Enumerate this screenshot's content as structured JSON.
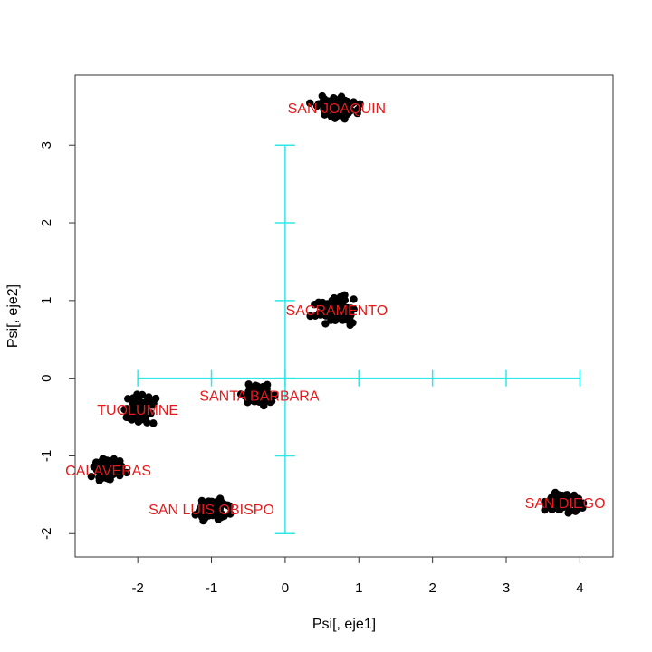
{
  "chart_data": {
    "type": "scatter",
    "title": "",
    "xlabel": "Psi[, eje1]",
    "ylabel": "Psi[, eje2]",
    "xlim": [
      -2.85,
      4.45
    ],
    "ylim": [
      -2.3,
      3.9
    ],
    "x_ticks": [
      -2,
      -1,
      0,
      1,
      2,
      3,
      4
    ],
    "y_ticks": [
      -2,
      -1,
      0,
      1,
      2,
      3
    ],
    "grid": false,
    "legend": "none",
    "point_color": "#000000",
    "label_color": "#e41a1c",
    "axes_cross_color": "#2ee8e8",
    "axes_cross": {
      "x_range": [
        -2,
        4
      ],
      "y_range": [
        -2,
        3
      ]
    },
    "clusters": [
      {
        "label": "SAN JOAQUIN",
        "center": [
          0.7,
          3.48
        ],
        "spread": [
          0.25,
          0.12
        ]
      },
      {
        "label": "SACRAMENTO",
        "center": [
          0.7,
          0.88
        ],
        "spread": [
          0.25,
          0.14
        ]
      },
      {
        "label": "SANTA BARBARA",
        "center": [
          -0.35,
          -0.22
        ],
        "spread": [
          0.18,
          0.1
        ]
      },
      {
        "label": "TUOLUMNE",
        "center": [
          -2.0,
          -0.4
        ],
        "spread": [
          0.18,
          0.16
        ]
      },
      {
        "label": "CALAVERAS",
        "center": [
          -2.4,
          -1.18
        ],
        "spread": [
          0.18,
          0.13
        ]
      },
      {
        "label": "SAN LUIS OBISPO",
        "center": [
          -1.0,
          -1.68
        ],
        "spread": [
          0.2,
          0.12
        ]
      },
      {
        "label": "SAN DIEGO",
        "center": [
          3.8,
          -1.6
        ],
        "spread": [
          0.2,
          0.13
        ]
      }
    ]
  }
}
